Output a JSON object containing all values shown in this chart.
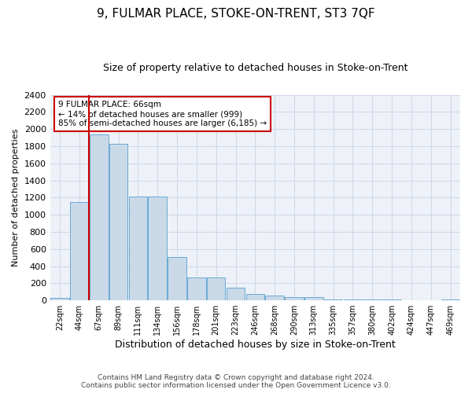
{
  "title": "9, FULMAR PLACE, STOKE-ON-TRENT, ST3 7QF",
  "subtitle": "Size of property relative to detached houses in Stoke-on-Trent",
  "xlabel": "Distribution of detached houses by size in Stoke-on-Trent",
  "ylabel": "Number of detached properties",
  "bar_color": "#c9d9e8",
  "bar_edge_color": "#6aaad4",
  "categories": [
    "22sqm",
    "44sqm",
    "67sqm",
    "89sqm",
    "111sqm",
    "134sqm",
    "156sqm",
    "178sqm",
    "201sqm",
    "223sqm",
    "246sqm",
    "268sqm",
    "290sqm",
    "313sqm",
    "335sqm",
    "357sqm",
    "380sqm",
    "402sqm",
    "424sqm",
    "447sqm",
    "469sqm"
  ],
  "values": [
    25,
    1150,
    1940,
    1830,
    1215,
    1215,
    510,
    265,
    265,
    145,
    75,
    55,
    40,
    35,
    15,
    15,
    10,
    10,
    5,
    5,
    15
  ],
  "ylim": [
    0,
    2400
  ],
  "yticks": [
    0,
    200,
    400,
    600,
    800,
    1000,
    1200,
    1400,
    1600,
    1800,
    2000,
    2200,
    2400
  ],
  "annotation_text": "9 FULMAR PLACE: 66sqm\n← 14% of detached houses are smaller (999)\n85% of semi-detached houses are larger (6,185) →",
  "annotation_box_color": "#ffffff",
  "annotation_box_edge": "#cc0000",
  "red_line_x": 1.5,
  "footer_line1": "Contains HM Land Registry data © Crown copyright and database right 2024.",
  "footer_line2": "Contains public sector information licensed under the Open Government Licence v3.0.",
  "grid_color": "#d0d8e8",
  "background_color": "#eef2f8"
}
